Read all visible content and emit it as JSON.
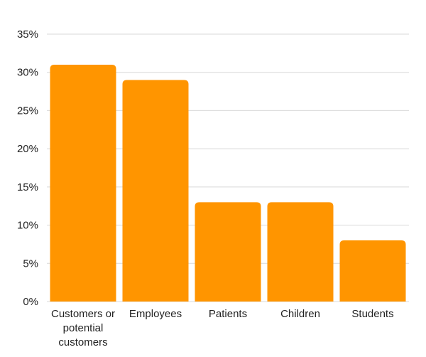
{
  "chart_data": {
    "type": "bar",
    "categories": [
      "Customers or potential customers",
      "Employees",
      "Patients",
      "Children",
      "Students"
    ],
    "category_label_lines": [
      [
        "Customers or",
        "potential",
        "customers"
      ],
      [
        "Employees"
      ],
      [
        "Patients"
      ],
      [
        "Children"
      ],
      [
        "Students"
      ]
    ],
    "values": [
      31,
      29,
      13,
      13,
      8
    ],
    "unit": "%",
    "ylim": [
      0,
      35
    ],
    "yticks": [
      0,
      5,
      10,
      15,
      20,
      25,
      30,
      35
    ],
    "ytick_labels": [
      "0%",
      "5%",
      "10%",
      "15%",
      "20%",
      "25%",
      "30%",
      "35%"
    ],
    "title": "",
    "xlabel": "",
    "ylabel": "",
    "grid": true,
    "legend": "none",
    "bar_color": "#ff9500",
    "grid_color": "#d9d9d9"
  }
}
